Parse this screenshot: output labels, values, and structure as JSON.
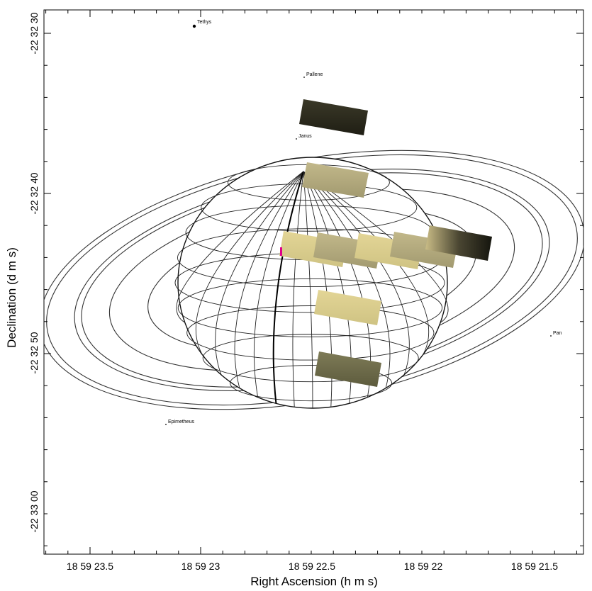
{
  "axes": {
    "xlabel": "Right Ascension (h m s)",
    "ylabel": "Declination (d m s)",
    "x_ticks": [
      "18 59 23.5",
      "18 59 23",
      "18 59 22.5",
      "18 59 22",
      "18 59 21.5"
    ],
    "y_ticks": [
      "-22 32 30",
      "-22 32 40",
      "-22 32 50",
      "-22 33 00"
    ]
  },
  "moons": [
    {
      "name": "Tethys"
    },
    {
      "name": "Pallene"
    },
    {
      "name": "Janus"
    },
    {
      "name": "Pan"
    },
    {
      "name": "Epimetheus"
    }
  ],
  "colors": {
    "frame": "#000000",
    "grid": "#222222",
    "ring": "#333333",
    "tile_dark": "#2b2a1c",
    "tile_light": "#d9cf8e",
    "tile_olive": "#6f6c4a",
    "edge_mark": "#e0008a"
  }
}
